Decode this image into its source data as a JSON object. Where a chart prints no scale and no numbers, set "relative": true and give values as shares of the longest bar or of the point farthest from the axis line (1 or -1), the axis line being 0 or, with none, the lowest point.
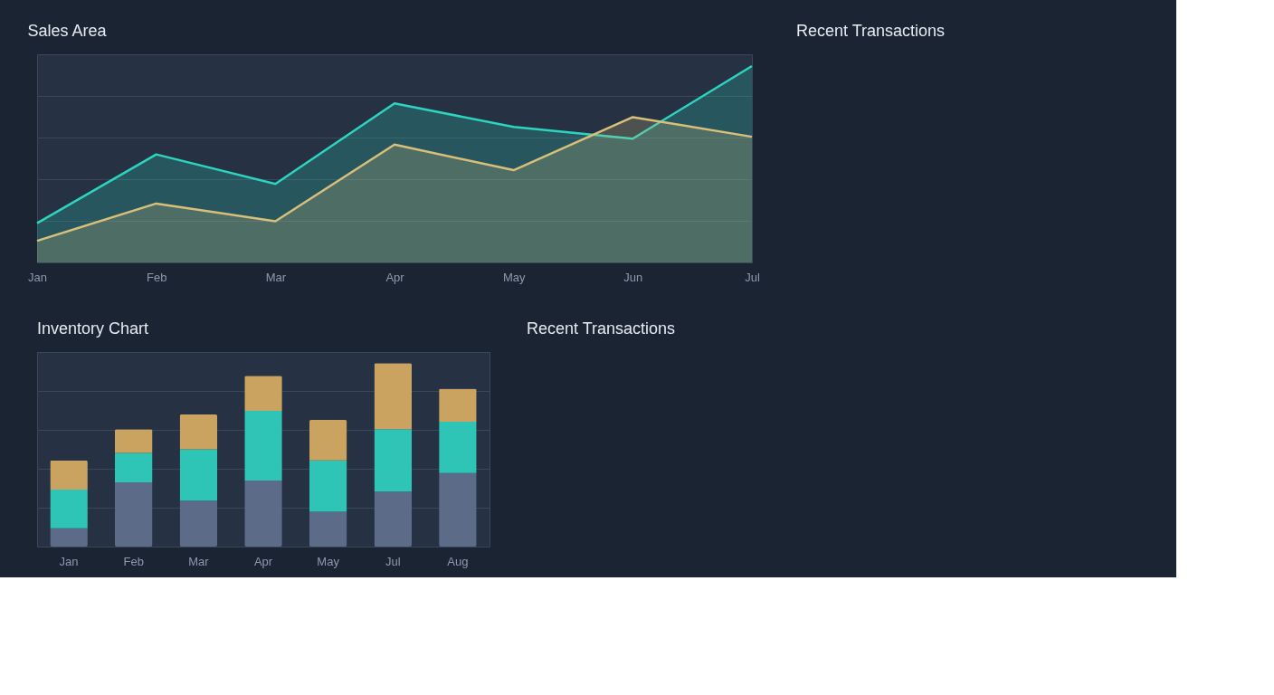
{
  "chart_data": [
    {
      "type": "area",
      "title": "Sales Area",
      "categories": [
        "Jan",
        "Feb",
        "Mar",
        "Apr",
        "May",
        "Jun",
        "Jul"
      ],
      "relative": true,
      "grid": "y",
      "tick_labels": "x",
      "series": [
        {
          "color": "#2dd4bf",
          "values": [
            0.2,
            0.55,
            0.4,
            0.81,
            0.69,
            0.63,
            1.0
          ]
        },
        {
          "color": "#d9c07a",
          "values": [
            0.11,
            0.3,
            0.21,
            0.6,
            0.47,
            0.74,
            0.64
          ]
        }
      ]
    },
    {
      "type": "other",
      "title": "Recent Transactions"
    },
    {
      "type": "bar",
      "title": "Inventory Chart",
      "categories": [
        "Jan",
        "Feb",
        "Mar",
        "Apr",
        "May",
        "Jul",
        "Aug"
      ],
      "relative": true,
      "stacked": true,
      "grid": "y",
      "tick_labels": "x",
      "series": [
        {
          "color": "#5b6b88",
          "values": [
            0.1,
            0.35,
            0.25,
            0.36,
            0.19,
            0.3,
            0.4
          ]
        },
        {
          "color": "#2ec4b6",
          "values": [
            0.21,
            0.16,
            0.28,
            0.38,
            0.28,
            0.34,
            0.28
          ]
        },
        {
          "color": "#c9a35f",
          "values": [
            0.16,
            0.13,
            0.19,
            0.19,
            0.22,
            0.36,
            0.18
          ]
        }
      ]
    },
    {
      "type": "other",
      "title": "Recent Transactions"
    }
  ]
}
